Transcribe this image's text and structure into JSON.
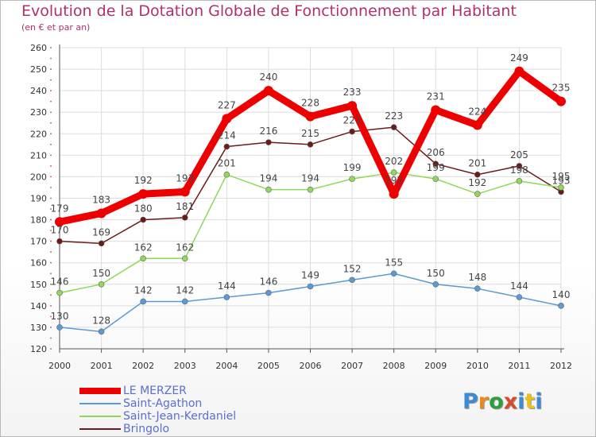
{
  "title": "Evolution de la Dotation Globale de Fonctionnement par Habitant",
  "subtitle": "(en € et par an)",
  "logo": {
    "text": "Proxiti",
    "colors": [
      "#3e8ad6",
      "#e88a1f",
      "#2e9d3e",
      "#d64c2a",
      "#3e8ad6",
      "#e6c21d",
      "#3e8ad6"
    ]
  },
  "chart_data": {
    "type": "line",
    "title": "Evolution de la Dotation Globale de Fonctionnement par Habitant",
    "subtitle": "(en € et par an)",
    "x": [
      "2000",
      "2001",
      "2002",
      "2003",
      "2004",
      "2005",
      "2006",
      "2007",
      "2008",
      "2009",
      "2010",
      "2011",
      "2012"
    ],
    "yticks": [
      120,
      130,
      140,
      150,
      160,
      170,
      180,
      190,
      200,
      210,
      220,
      230,
      240,
      250,
      260
    ],
    "ylim": [
      120,
      260
    ],
    "grid": true,
    "legend_position": "bottom-left",
    "series": [
      {
        "name": "Bringolo",
        "color": "#6b1a1a",
        "values": [
          170,
          169,
          180,
          181,
          214,
          216,
          215,
          221,
          223,
          206,
          201,
          205,
          193
        ]
      },
      {
        "name": "Saint-Jean-Kerdaniel",
        "color": "#8fd95a",
        "values": [
          146,
          150,
          162,
          162,
          201,
          194,
          194,
          199,
          202,
          199,
          192,
          198,
          195
        ]
      },
      {
        "name": "Saint-Agathon",
        "color": "#5b9bd5",
        "values": [
          130,
          128,
          142,
          142,
          144,
          146,
          149,
          152,
          155,
          150,
          148,
          144,
          140
        ]
      },
      {
        "name": "LE MERZER",
        "color": "#ee0000",
        "values": [
          179,
          183,
          192,
          193,
          227,
          240,
          228,
          233,
          192,
          231,
          224,
          249,
          235
        ]
      }
    ],
    "legend": [
      "LE MERZER",
      "Saint-Agathon",
      "Saint-Jean-Kerdaniel",
      "Bringolo"
    ]
  }
}
